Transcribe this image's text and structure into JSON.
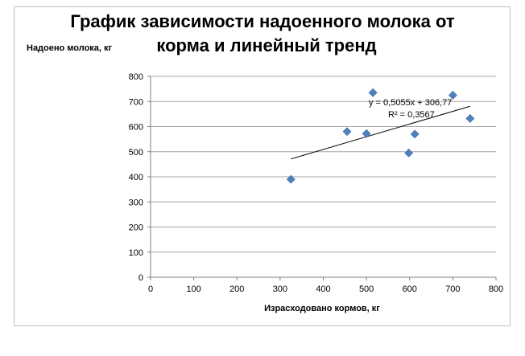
{
  "chart_data": {
    "type": "scatter",
    "title_line1": "График зависимости надоенного молока от",
    "title_line2": "корма и линейный тренд",
    "xlabel": "Израсходовано кормов, кг",
    "ylabel": "Надоено молока, кг",
    "xlim": [
      0,
      800
    ],
    "ylim": [
      0,
      800
    ],
    "xticks": [
      0,
      100,
      200,
      300,
      400,
      500,
      600,
      700,
      800
    ],
    "yticks": [
      0,
      100,
      200,
      300,
      400,
      500,
      600,
      700,
      800
    ],
    "grid": "horizontal",
    "legend": "none",
    "marker": "diamond",
    "marker_color": "#4f81bd",
    "series": [
      {
        "x": [
          325,
          455,
          500,
          515,
          598,
          612,
          700,
          740
        ],
        "y": [
          390,
          580,
          572,
          735,
          495,
          570,
          725,
          632
        ]
      }
    ],
    "trendline": {
      "type": "linear",
      "slope": 0.5055,
      "intercept": 306.77,
      "x_range": [
        325,
        740
      ],
      "equation": "y = 0,5055x + 306,77",
      "r_squared": "R² = 0,3567"
    }
  }
}
